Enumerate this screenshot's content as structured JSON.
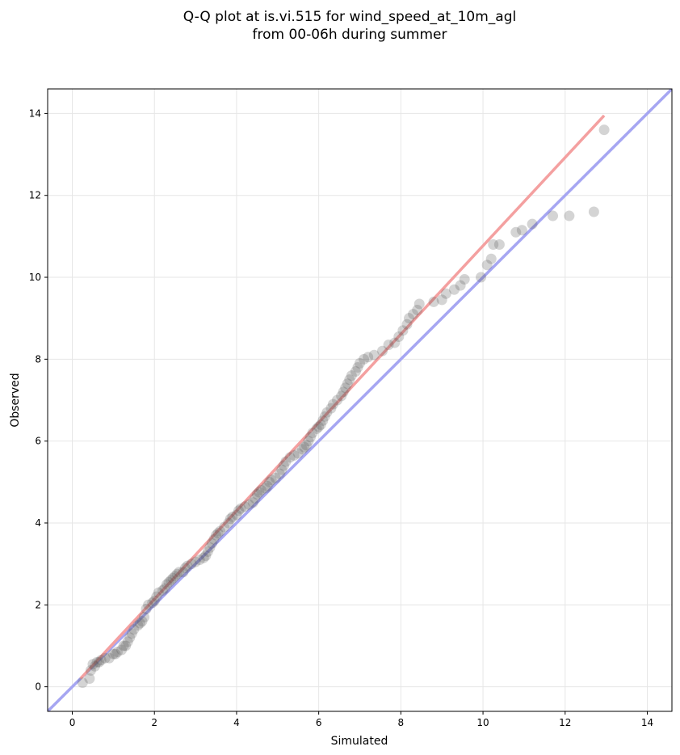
{
  "chart_data": {
    "type": "scatter",
    "title_line1": "Q-Q plot at is.vi.515 for wind_speed_at_10m_agl",
    "title_line2": "from 00-06h during summer",
    "xlabel": "Simulated",
    "ylabel": "Observed",
    "xlim": [
      -0.6,
      14.6
    ],
    "ylim": [
      -0.6,
      14.6
    ],
    "xticks": [
      "0",
      "2",
      "4",
      "6",
      "8",
      "10",
      "12",
      "14"
    ],
    "yticks": [
      "0",
      "2",
      "4",
      "6",
      "8",
      "10",
      "12",
      "14"
    ],
    "grid": true,
    "point_color": "#555555",
    "fit_line": {
      "color": "#f4a0a0",
      "x0": 0.2,
      "y0": 0.2,
      "x1": 12.95,
      "y1": 13.95
    },
    "identity_line": {
      "color": "#a6a6f2"
    },
    "points": [
      [
        0.25,
        0.1
      ],
      [
        0.42,
        0.2
      ],
      [
        0.45,
        0.4
      ],
      [
        0.5,
        0.55
      ],
      [
        0.55,
        0.5
      ],
      [
        0.6,
        0.6
      ],
      [
        0.65,
        0.6
      ],
      [
        0.7,
        0.65
      ],
      [
        0.8,
        0.7
      ],
      [
        0.9,
        0.7
      ],
      [
        1.0,
        0.8
      ],
      [
        1.05,
        0.8
      ],
      [
        1.1,
        0.85
      ],
      [
        1.2,
        0.9
      ],
      [
        1.25,
        1.0
      ],
      [
        1.3,
        1.0
      ],
      [
        1.35,
        1.1
      ],
      [
        1.4,
        1.2
      ],
      [
        1.45,
        1.3
      ],
      [
        1.5,
        1.4
      ],
      [
        1.6,
        1.5
      ],
      [
        1.65,
        1.55
      ],
      [
        1.7,
        1.6
      ],
      [
        1.75,
        1.7
      ],
      [
        1.8,
        1.9
      ],
      [
        1.85,
        2.0
      ],
      [
        1.95,
        2.05
      ],
      [
        2.0,
        2.1
      ],
      [
        2.05,
        2.2
      ],
      [
        2.1,
        2.3
      ],
      [
        2.2,
        2.35
      ],
      [
        2.25,
        2.4
      ],
      [
        2.3,
        2.5
      ],
      [
        2.35,
        2.55
      ],
      [
        2.4,
        2.6
      ],
      [
        2.45,
        2.65
      ],
      [
        2.5,
        2.7
      ],
      [
        2.55,
        2.75
      ],
      [
        2.6,
        2.8
      ],
      [
        2.7,
        2.8
      ],
      [
        2.75,
        2.9
      ],
      [
        2.8,
        2.95
      ],
      [
        2.9,
        3.0
      ],
      [
        3.0,
        3.05
      ],
      [
        3.1,
        3.1
      ],
      [
        3.2,
        3.15
      ],
      [
        3.25,
        3.2
      ],
      [
        3.3,
        3.3
      ],
      [
        3.35,
        3.4
      ],
      [
        3.4,
        3.5
      ],
      [
        3.45,
        3.6
      ],
      [
        3.5,
        3.7
      ],
      [
        3.55,
        3.75
      ],
      [
        3.6,
        3.8
      ],
      [
        3.7,
        3.9
      ],
      [
        3.8,
        4.0
      ],
      [
        3.85,
        4.1
      ],
      [
        3.9,
        4.15
      ],
      [
        4.0,
        4.2
      ],
      [
        4.05,
        4.3
      ],
      [
        4.1,
        4.35
      ],
      [
        4.2,
        4.4
      ],
      [
        4.3,
        4.45
      ],
      [
        4.4,
        4.5
      ],
      [
        4.45,
        4.6
      ],
      [
        4.5,
        4.7
      ],
      [
        4.55,
        4.75
      ],
      [
        4.6,
        4.8
      ],
      [
        4.7,
        4.85
      ],
      [
        4.75,
        4.9
      ],
      [
        4.8,
        5.0
      ],
      [
        4.85,
        5.05
      ],
      [
        4.95,
        5.1
      ],
      [
        5.05,
        5.2
      ],
      [
        5.1,
        5.3
      ],
      [
        5.15,
        5.4
      ],
      [
        5.2,
        5.5
      ],
      [
        5.3,
        5.6
      ],
      [
        5.4,
        5.65
      ],
      [
        5.5,
        5.7
      ],
      [
        5.6,
        5.8
      ],
      [
        5.65,
        5.85
      ],
      [
        5.7,
        5.9
      ],
      [
        5.75,
        6.0
      ],
      [
        5.8,
        6.1
      ],
      [
        5.85,
        6.2
      ],
      [
        5.95,
        6.3
      ],
      [
        6.0,
        6.35
      ],
      [
        6.05,
        6.4
      ],
      [
        6.1,
        6.5
      ],
      [
        6.15,
        6.6
      ],
      [
        6.2,
        6.7
      ],
      [
        6.3,
        6.8
      ],
      [
        6.35,
        6.9
      ],
      [
        6.45,
        7.0
      ],
      [
        6.55,
        7.1
      ],
      [
        6.6,
        7.2
      ],
      [
        6.65,
        7.3
      ],
      [
        6.7,
        7.4
      ],
      [
        6.75,
        7.5
      ],
      [
        6.8,
        7.6
      ],
      [
        6.9,
        7.7
      ],
      [
        6.95,
        7.8
      ],
      [
        7.0,
        7.9
      ],
      [
        7.1,
        8.0
      ],
      [
        7.2,
        8.05
      ],
      [
        7.35,
        8.1
      ],
      [
        7.55,
        8.2
      ],
      [
        7.7,
        8.35
      ],
      [
        7.85,
        8.4
      ],
      [
        7.95,
        8.55
      ],
      [
        8.05,
        8.7
      ],
      [
        8.15,
        8.85
      ],
      [
        8.2,
        9.0
      ],
      [
        8.3,
        9.1
      ],
      [
        8.4,
        9.2
      ],
      [
        8.45,
        9.35
      ],
      [
        8.8,
        9.4
      ],
      [
        9.0,
        9.45
      ],
      [
        9.1,
        9.6
      ],
      [
        9.3,
        9.7
      ],
      [
        9.45,
        9.8
      ],
      [
        9.55,
        9.95
      ],
      [
        9.95,
        10.0
      ],
      [
        10.1,
        10.3
      ],
      [
        10.2,
        10.45
      ],
      [
        10.25,
        10.8
      ],
      [
        10.4,
        10.8
      ],
      [
        10.8,
        11.1
      ],
      [
        10.95,
        11.15
      ],
      [
        11.2,
        11.3
      ],
      [
        11.7,
        11.5
      ],
      [
        12.1,
        11.5
      ],
      [
        12.7,
        11.6
      ],
      [
        12.95,
        13.6
      ]
    ]
  }
}
